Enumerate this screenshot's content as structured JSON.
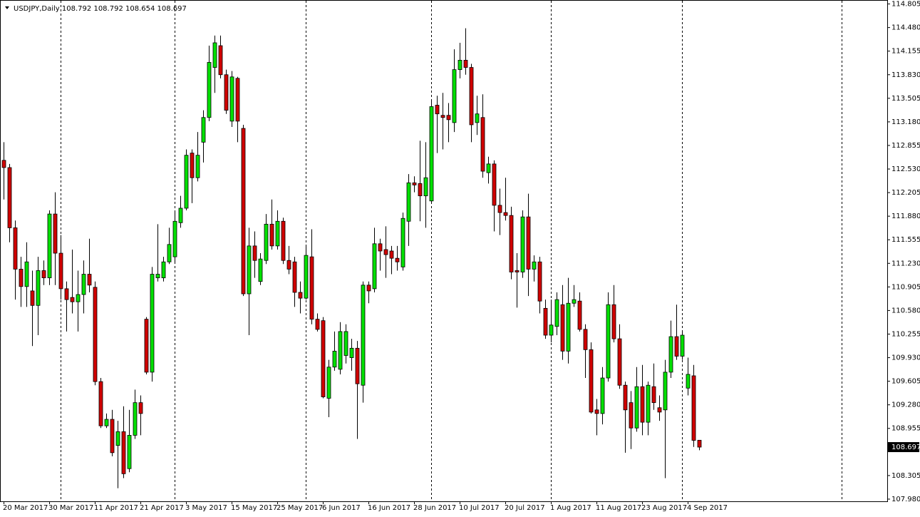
{
  "chart_data": {
    "type": "candlestick",
    "title": "USDJPY,Daily",
    "ohlc_header": [
      108.792,
      108.792,
      108.654,
      108.697
    ],
    "last_price": 108.697,
    "up_color": "#00e000",
    "down_color": "#d00000",
    "categories": [
      "20 Mar 2017",
      null,
      null,
      null,
      null,
      null,
      null,
      null,
      "30 Mar 2017",
      null,
      null,
      null,
      null,
      null,
      null,
      null,
      "11 Apr 2017",
      null,
      null,
      null,
      null,
      null,
      null,
      null,
      "21 Apr 2017",
      null,
      null,
      null,
      null,
      null,
      null,
      null,
      "3 May 2017",
      null,
      null,
      null,
      null,
      null,
      null,
      null,
      "15 May 2017",
      null,
      null,
      null,
      null,
      null,
      null,
      null,
      "25 May 2017",
      null,
      null,
      null,
      null,
      null,
      null,
      null,
      "6 Jun 2017",
      null,
      null,
      null,
      null,
      null,
      null,
      null,
      "16 Jun 2017",
      null,
      null,
      null,
      null,
      null,
      null,
      null,
      "28 Jun 2017",
      null,
      null,
      null,
      null,
      null,
      null,
      null,
      "10 Jul 2017",
      null,
      null,
      null,
      null,
      null,
      null,
      null,
      "20 Jul 2017",
      null,
      null,
      null,
      null,
      null,
      null,
      null,
      "1 Aug 2017",
      null,
      null,
      null,
      null,
      null,
      null,
      null,
      "11 Aug 2017",
      null,
      null,
      null,
      null,
      null,
      null,
      null,
      "23 Aug 2017",
      null,
      null,
      null,
      null,
      null,
      null,
      null,
      "4 Sep 2017",
      null,
      null
    ],
    "open": [
      112.65,
      112.55,
      111.72,
      111.15,
      110.91,
      110.85,
      110.65,
      111.13,
      111.03,
      111.91,
      111.37,
      110.88,
      110.76,
      110.7,
      110.8,
      111.08,
      110.9,
      109.6,
      108.99,
      109.08,
      108.72,
      108.91,
      108.4,
      108.86,
      109.31,
      110.46,
      109.73,
      111.03,
      111.03,
      111.25,
      111.32,
      111.79,
      111.99,
      112.75,
      112.41,
      112.9,
      113.24,
      113.93,
      114.23,
      113.83,
      113.19,
      113.78,
      113.09,
      110.81,
      111.47,
      110.98,
      111.27,
      111.77,
      111.47,
      111.81,
      111.27,
      111.25,
      110.83,
      110.75,
      111.32,
      110.46,
      110.44,
      109.37,
      109.8,
      109.77,
      109.96,
      109.93,
      110.06,
      109.55,
      110.93,
      110.88,
      111.5,
      111.42,
      111.4,
      111.3,
      111.18,
      111.81,
      112.34,
      112.33,
      112.16,
      112.09,
      113.41,
      113.27,
      113.27,
      113.17,
      113.9,
      114.03,
      113.93,
      113.17,
      113.24,
      112.48,
      112.6,
      112.03,
      111.93,
      111.89,
      111.13,
      111.11,
      111.87,
      111.15,
      111.25,
      110.61,
      110.24,
      110.36,
      110.66,
      110.02,
      110.68,
      110.71,
      110.32,
      110.04,
      109.21,
      109.16,
      109.65,
      110.66,
      110.19,
      109.55,
      109.31,
      108.96,
      109.53,
      109.04,
      109.53,
      109.24,
      109.21,
      109.73,
      110.22,
      109.95,
      109.51,
      109.68,
      108.792
    ],
    "high": [
      112.9,
      112.6,
      111.82,
      111.32,
      111.52,
      111.13,
      111.32,
      111.27,
      111.96,
      112.21,
      111.62,
      110.98,
      111.42,
      111.13,
      111.27,
      111.57,
      110.98,
      109.65,
      109.16,
      109.21,
      109.06,
      109.26,
      109.21,
      109.49,
      109.41,
      110.49,
      111.18,
      111.77,
      111.32,
      111.72,
      111.96,
      112.16,
      112.8,
      112.8,
      113.04,
      113.34,
      114.23,
      114.37,
      114.37,
      113.9,
      113.88,
      113.8,
      113.14,
      111.72,
      111.67,
      111.37,
      111.91,
      112.11,
      111.96,
      111.86,
      111.47,
      111.32,
      110.98,
      111.47,
      111.7,
      110.54,
      110.49,
      109.9,
      110.29,
      110.42,
      110.39,
      110.19,
      110.16,
      110.98,
      110.98,
      111.72,
      111.57,
      111.74,
      111.47,
      111.47,
      111.93,
      112.46,
      112.43,
      112.92,
      112.9,
      113.49,
      113.54,
      113.58,
      113.44,
      114.18,
      114.27,
      114.47,
      113.98,
      113.54,
      113.56,
      112.7,
      112.65,
      112.26,
      112.41,
      112.01,
      111.37,
      111.96,
      112.19,
      111.34,
      111.32,
      110.73,
      110.73,
      110.83,
      110.93,
      111.03,
      110.93,
      110.83,
      110.39,
      110.14,
      109.36,
      109.8,
      110.83,
      110.93,
      110.39,
      109.6,
      109.47,
      109.8,
      109.83,
      109.6,
      109.85,
      109.41,
      109.9,
      110.44,
      110.66,
      110.29,
      109.93,
      109.83,
      108.792
    ],
    "low": [
      112.11,
      111.52,
      110.73,
      110.63,
      110.63,
      110.09,
      110.24,
      110.93,
      110.93,
      110.93,
      110.73,
      110.29,
      110.54,
      110.29,
      110.54,
      110.83,
      109.55,
      108.96,
      108.96,
      108.57,
      108.13,
      108.27,
      108.35,
      108.81,
      108.86,
      109.7,
      109.6,
      110.98,
      110.98,
      111.22,
      111.25,
      111.72,
      111.96,
      112.06,
      112.36,
      112.62,
      113.19,
      113.58,
      113.78,
      113.29,
      113.11,
      112.9,
      110.78,
      110.24,
      111.03,
      110.93,
      111.22,
      111.42,
      111.42,
      111.22,
      111.08,
      110.63,
      110.54,
      110.73,
      110.39,
      110.29,
      109.37,
      109.11,
      109.75,
      109.7,
      109.85,
      109.75,
      108.81,
      109.31,
      110.68,
      110.83,
      111.13,
      111.03,
      111.08,
      111.13,
      111.13,
      111.47,
      112.21,
      111.81,
      111.72,
      112.06,
      112.75,
      112.8,
      112.9,
      113.04,
      113.78,
      113.83,
      112.9,
      113.0,
      112.41,
      112.33,
      111.67,
      111.62,
      111.82,
      111.01,
      110.62,
      111.03,
      110.78,
      110.98,
      110.54,
      110.19,
      110.14,
      110.24,
      109.9,
      109.85,
      110.63,
      110.29,
      109.65,
      109.16,
      108.86,
      109.01,
      109.6,
      110.14,
      109.5,
      108.62,
      108.67,
      108.91,
      108.86,
      108.86,
      109.21,
      109.06,
      108.27,
      109.65,
      109.9,
      109.9,
      109.41,
      108.7,
      108.654
    ],
    "close": [
      112.55,
      111.72,
      111.15,
      110.91,
      111.25,
      110.65,
      111.13,
      111.03,
      111.91,
      111.37,
      110.88,
      110.73,
      110.7,
      110.8,
      111.08,
      110.93,
      109.6,
      108.99,
      109.08,
      108.62,
      108.91,
      108.33,
      108.86,
      109.31,
      109.16,
      109.73,
      111.08,
      111.08,
      111.25,
      111.49,
      111.81,
      111.99,
      112.72,
      112.41,
      112.72,
      113.24,
      114.0,
      114.27,
      113.83,
      113.34,
      113.8,
      113.19,
      110.81,
      111.47,
      111.27,
      111.29,
      111.77,
      111.47,
      111.81,
      111.27,
      111.15,
      110.83,
      110.75,
      111.34,
      110.46,
      110.32,
      109.39,
      109.8,
      110.02,
      110.29,
      110.29,
      110.06,
      109.57,
      110.93,
      110.85,
      111.5,
      111.4,
      111.35,
      111.3,
      111.25,
      111.85,
      112.34,
      112.31,
      112.16,
      112.41,
      113.39,
      113.29,
      113.24,
      113.21,
      113.9,
      114.03,
      113.93,
      113.14,
      113.29,
      112.5,
      112.6,
      112.03,
      111.93,
      111.89,
      111.11,
      111.11,
      111.87,
      111.15,
      111.25,
      110.71,
      110.24,
      110.38,
      110.73,
      110.02,
      110.68,
      110.73,
      110.32,
      110.04,
      109.18,
      109.16,
      109.65,
      110.66,
      110.19,
      109.55,
      109.21,
      108.96,
      109.53,
      109.04,
      109.55,
      109.31,
      109.18,
      109.73,
      110.22,
      109.95,
      110.24,
      109.7,
      108.79,
      108.697
    ],
    "ylim": [
      107.95,
      114.84
    ],
    "yticks": [
      114.805,
      {
        "value": 114.48,
        "label": "114.480"
      },
      114.155,
      {
        "value": 113.83,
        "label": "113.830"
      },
      113.505,
      {
        "value": 113.18,
        "label": "113.180"
      },
      112.855,
      {
        "value": 112.53,
        "label": "112.530"
      },
      112.205,
      {
        "value": 111.88,
        "label": "111.880"
      },
      111.555,
      {
        "value": 111.23,
        "label": "111.230"
      },
      110.905,
      {
        "value": 110.58,
        "label": "110.580"
      },
      110.255,
      {
        "value": 109.93,
        "label": "109.930"
      },
      109.605,
      {
        "value": 109.28,
        "label": "109.280"
      },
      108.955,
      108.305,
      {
        "value": 107.98,
        "label": "107.980"
      }
    ]
  }
}
